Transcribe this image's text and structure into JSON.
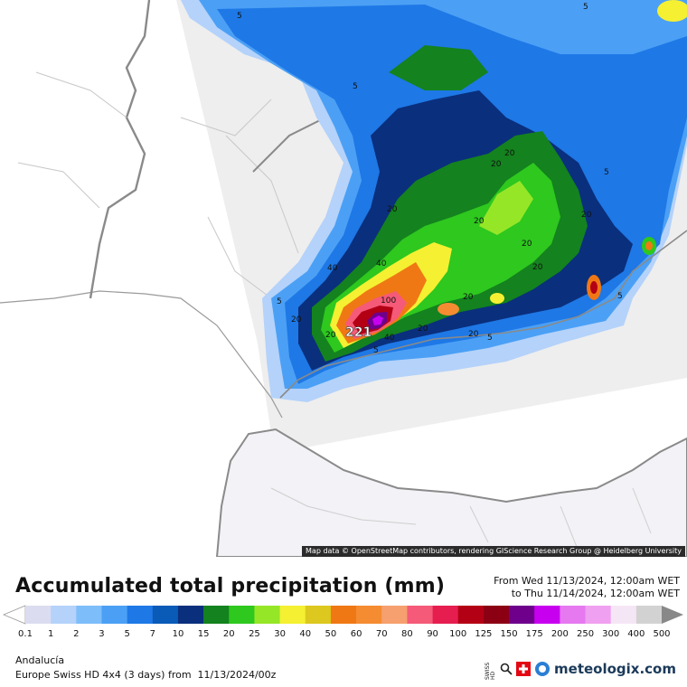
{
  "map": {
    "attribution": "Map data © OpenStreetMap contributors, rendering GIScience Research Group @ Heidelberg University",
    "max_label": "221",
    "contour_labels": [
      "5",
      "5",
      "5",
      "5",
      "5",
      "5",
      "5",
      "5",
      "20",
      "20",
      "20",
      "20",
      "20",
      "20",
      "20",
      "20",
      "20",
      "20",
      "20",
      "20",
      "40",
      "40",
      "40",
      "100"
    ]
  },
  "header": {
    "title": "Accumulated total precipitation (mm)",
    "from_line": "From Wed 11/13/2024, 12:00am WET",
    "to_line": "to Thu 11/14/2024, 12:00am WET"
  },
  "legend": {
    "values": [
      "0.1",
      "1",
      "2",
      "3",
      "5",
      "7",
      "10",
      "15",
      "20",
      "25",
      "30",
      "40",
      "50",
      "60",
      "70",
      "80",
      "90",
      "100",
      "125",
      "150",
      "175",
      "200",
      "250",
      "300",
      "400",
      "500"
    ],
    "colors": [
      "#dcdcf0",
      "#b4d2fa",
      "#7dbdfa",
      "#4ba0f5",
      "#1e78e6",
      "#0a5ab8",
      "#0a2f7d",
      "#14821e",
      "#2ec81e",
      "#96e628",
      "#f5f032",
      "#dcc81e",
      "#f07814",
      "#f58c32",
      "#f5a06e",
      "#f55a78",
      "#e61e50",
      "#b40014",
      "#8c0014",
      "#6e008c",
      "#c800f0",
      "#e678f0",
      "#f0a0f0",
      "#f5e6f5",
      "#d2d2d2"
    ]
  },
  "footer": {
    "region": "Andalucía",
    "model": "Europe Swiss HD 4x4 (3 days) from  11/13/2024/00z",
    "swiss_hd": "SWISS HD",
    "brand": "meteologix.com"
  }
}
